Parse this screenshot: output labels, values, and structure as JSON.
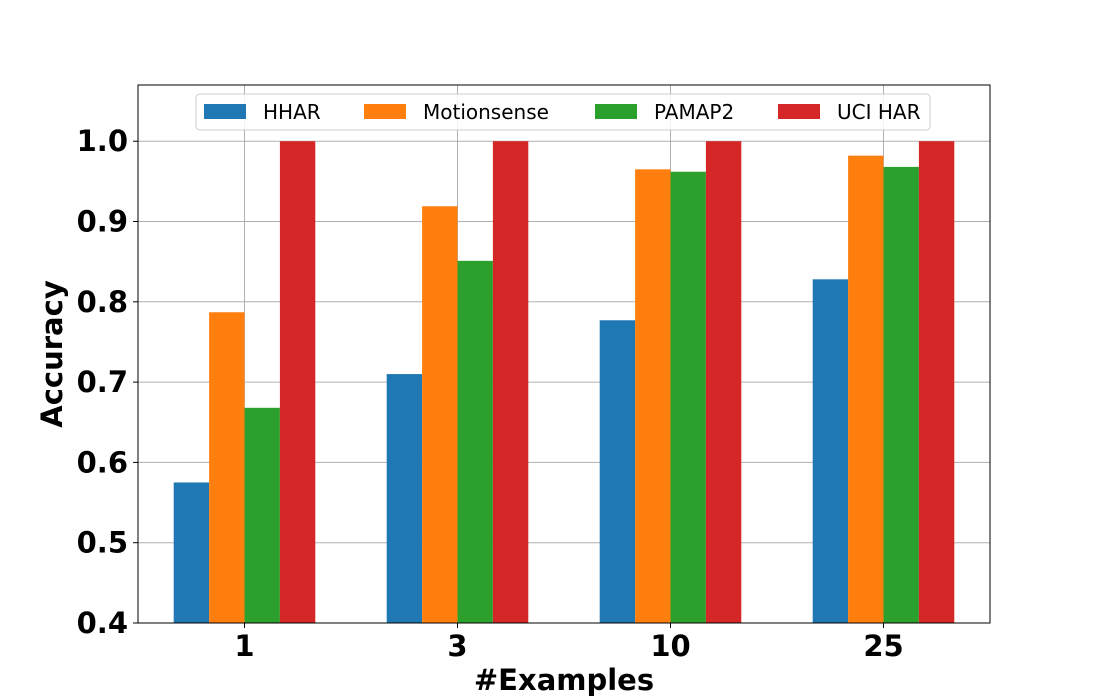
{
  "chart_data": {
    "type": "bar",
    "categories": [
      "1",
      "3",
      "10",
      "25"
    ],
    "series": [
      {
        "name": "HHAR",
        "color": "#1f77b4",
        "values": [
          0.575,
          0.71,
          0.777,
          0.828
        ]
      },
      {
        "name": "Motionsense",
        "color": "#ff7f0e",
        "values": [
          0.787,
          0.919,
          0.965,
          0.982
        ]
      },
      {
        "name": "PAMAP2",
        "color": "#2ca02c",
        "values": [
          0.668,
          0.851,
          0.962,
          0.968
        ]
      },
      {
        "name": "UCI HAR",
        "color": "#d62728",
        "values": [
          1.0,
          1.0,
          1.0,
          1.0
        ]
      }
    ],
    "title": "",
    "xlabel": "#Examples",
    "ylabel": "Accuracy",
    "ylim": [
      0.4,
      1.07
    ],
    "yticks": [
      "0.4",
      "0.5",
      "0.6",
      "0.7",
      "0.8",
      "0.9",
      "1.0"
    ],
    "grid": true,
    "legend_position": "top-center"
  }
}
